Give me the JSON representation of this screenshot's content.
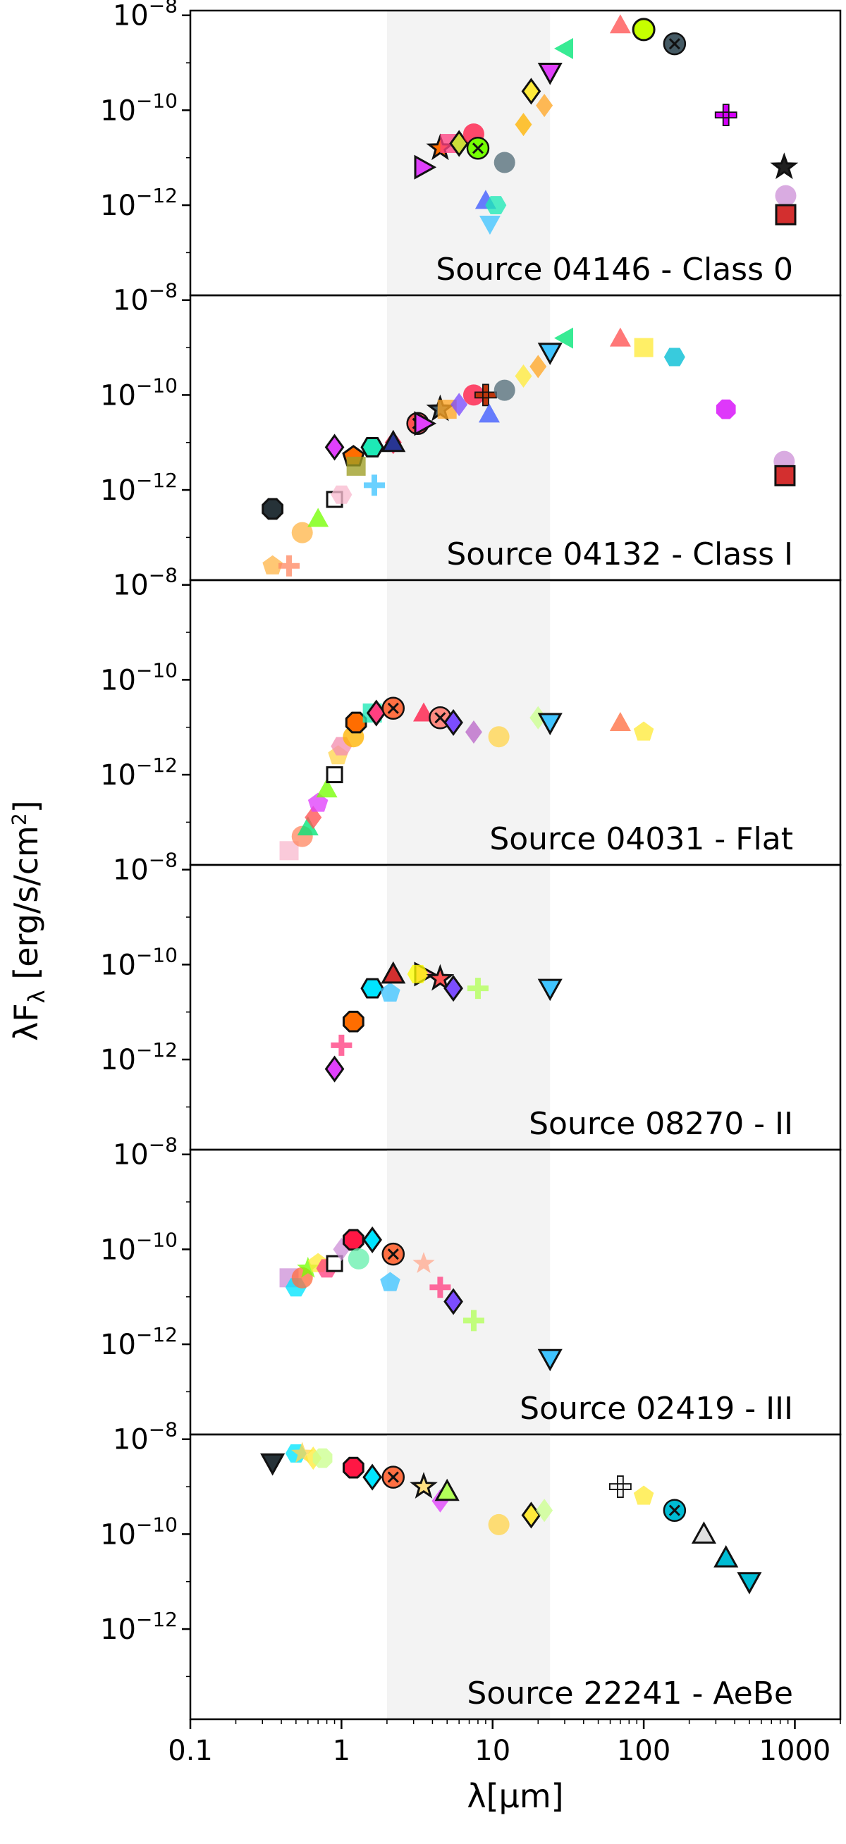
{
  "chart_data": {
    "type": "scatter",
    "xlabel": "λ[μm]",
    "ylabel": "λF_λ [erg/s/cm²]",
    "xscale": "log",
    "yscale": "log",
    "xlim": [
      0.1,
      2000
    ],
    "x_ticks": [
      0.1,
      1,
      10,
      100,
      1000
    ],
    "x_tick_labels": [
      "0.1",
      "1",
      "10",
      "100",
      "1000"
    ],
    "shaded_band_x": [
      2,
      24
    ],
    "panels": [
      {
        "label": "Source 04146 - Class 0",
        "ylim_exp": [
          -13.9,
          -7.9
        ],
        "y_tick_exps": [
          -8,
          -10,
          -12
        ],
        "points": [
          [
            3.5,
            -11.2,
            "#e040fb",
            "tri-right",
            1
          ],
          [
            4.5,
            -10.8,
            "#ff6d00",
            "star",
            1
          ],
          [
            5.2,
            -10.7,
            "#ff4081",
            "square",
            0
          ],
          [
            6.0,
            -10.7,
            "#cddc39",
            "diamond",
            1
          ],
          [
            7.5,
            -10.5,
            "#ff1744",
            "circle",
            0
          ],
          [
            8.0,
            -10.8,
            "#76ff03",
            "x",
            1
          ],
          [
            9.0,
            -11.9,
            "#3d5afe",
            "triangle",
            0
          ],
          [
            9.6,
            -12.4,
            "#40c4ff",
            "tri-down",
            0
          ],
          [
            10.5,
            -12.0,
            "#1de9b6",
            "hexagon",
            0
          ],
          [
            12.0,
            -11.1,
            "#546e7a",
            "circle",
            0
          ],
          [
            16.0,
            -10.3,
            "#ffb300",
            "diamond",
            0
          ],
          [
            18.0,
            -9.6,
            "#ffeb3b",
            "diamond",
            1
          ],
          [
            22.0,
            -9.9,
            "#ffa726",
            "diamond",
            0
          ],
          [
            24.0,
            -9.2,
            "#e040fb",
            "tri-down",
            1
          ],
          [
            30.0,
            -8.7,
            "#00e676",
            "tri-left",
            0
          ],
          [
            70.0,
            -8.2,
            "#ff5252",
            "triangle",
            0
          ],
          [
            100.0,
            -8.3,
            "#c6ff00",
            "circle",
            1
          ],
          [
            160.0,
            -8.6,
            "#455a64",
            "x",
            1
          ],
          [
            350.0,
            -10.1,
            "#d500f9",
            "plus",
            1
          ],
          [
            850.0,
            -11.2,
            "#212121",
            "star",
            1
          ],
          [
            870.0,
            -11.8,
            "#ce93d8",
            "circle",
            0
          ],
          [
            870.0,
            -12.2,
            "#d32f2f",
            "square",
            1
          ]
        ]
      },
      {
        "label": "Source 04132 - Class I",
        "ylim_exp": [
          -13.9,
          -7.9
        ],
        "y_tick_exps": [
          -8,
          -10,
          -12
        ],
        "points": [
          [
            0.35,
            -12.4,
            "#263238",
            "octagon",
            1
          ],
          [
            0.35,
            -13.6,
            "#ffb74d",
            "pentagon",
            0
          ],
          [
            0.45,
            -13.6,
            "#ff8a65",
            "plus",
            0
          ],
          [
            0.55,
            -12.9,
            "#ffb74d",
            "circle",
            0
          ],
          [
            0.7,
            -12.6,
            "#76ff03",
            "triangle",
            0
          ],
          [
            0.9,
            -11.1,
            "#e040fb",
            "diamond",
            1
          ],
          [
            0.9,
            -12.2,
            "#f8bbd0",
            "square-open",
            1
          ],
          [
            1.0,
            -12.1,
            "#f8bbd0",
            "hexagon",
            0
          ],
          [
            1.2,
            -11.3,
            "#ff6d00",
            "pentagon",
            1
          ],
          [
            1.25,
            -11.5,
            "#9e9d24",
            "square",
            0
          ],
          [
            1.6,
            -11.1,
            "#1de9b6",
            "hexagon",
            1
          ],
          [
            1.65,
            -11.9,
            "#40c4ff",
            "plus",
            0
          ],
          [
            2.2,
            -11.0,
            "#ff1744",
            "diamond",
            0
          ],
          [
            2.2,
            -11.0,
            "#283593",
            "triangle",
            1
          ],
          [
            3.2,
            -10.6,
            "#ff5252",
            "x",
            0
          ],
          [
            3.5,
            -10.6,
            "#e040fb",
            "tri-right",
            1
          ],
          [
            4.5,
            -10.3,
            "#455a64",
            "star",
            1
          ],
          [
            5.0,
            -10.3,
            "#ffa726",
            "square",
            0
          ],
          [
            6.0,
            -10.2,
            "#7c4dff",
            "diamond",
            0
          ],
          [
            7.5,
            -10.0,
            "#ff1744",
            "circle",
            0
          ],
          [
            9.0,
            -10.0,
            "#bf360c",
            "plus",
            1
          ],
          [
            9.5,
            -10.4,
            "#3d5afe",
            "triangle",
            0
          ],
          [
            12.0,
            -9.9,
            "#546e7a",
            "circle",
            0
          ],
          [
            16.0,
            -9.6,
            "#ffeb3b",
            "diamond",
            0
          ],
          [
            20.0,
            -9.4,
            "#ffa726",
            "diamond",
            0
          ],
          [
            24.0,
            -9.1,
            "#40c4ff",
            "tri-down",
            1
          ],
          [
            30.0,
            -8.8,
            "#00e676",
            "tri-left",
            0
          ],
          [
            70.0,
            -8.8,
            "#ff5252",
            "triangle",
            0
          ],
          [
            100.0,
            -9.0,
            "#ffeb3b",
            "square",
            0
          ],
          [
            160.0,
            -9.2,
            "#00bcd4",
            "hexagon",
            0
          ],
          [
            350.0,
            -10.3,
            "#d500f9",
            "octagon",
            0
          ],
          [
            850.0,
            -11.4,
            "#ce93d8",
            "circle",
            0
          ],
          [
            860.0,
            -11.7,
            "#d32f2f",
            "square",
            1
          ]
        ]
      },
      {
        "label": "Source 04031 - Flat",
        "ylim_exp": [
          -13.9,
          -7.9
        ],
        "y_tick_exps": [
          -8,
          -10,
          -12
        ],
        "points": [
          [
            0.45,
            -13.6,
            "#f8bbd0",
            "square",
            0
          ],
          [
            0.55,
            -13.3,
            "#ff8a65",
            "circle",
            0
          ],
          [
            0.6,
            -13.1,
            "#00e676",
            "triangle",
            0
          ],
          [
            0.65,
            -12.9,
            "#ff5252",
            "diamond",
            0
          ],
          [
            0.7,
            -12.6,
            "#e040fb",
            "pentagon",
            0
          ],
          [
            0.8,
            -12.3,
            "#76ff03",
            "triangle",
            0
          ],
          [
            0.9,
            -12.0,
            "#fff59d",
            "square-open",
            1
          ],
          [
            0.95,
            -11.6,
            "#ffd54f",
            "pentagon",
            0
          ],
          [
            1.0,
            -11.4,
            "#f48fb1",
            "hexagon",
            0
          ],
          [
            1.2,
            -11.2,
            "#ffb300",
            "circle",
            0
          ],
          [
            1.25,
            -10.9,
            "#ff6d00",
            "octagon",
            1
          ],
          [
            1.6,
            -10.7,
            "#1de9b6",
            "square",
            0
          ],
          [
            1.7,
            -10.7,
            "#ff4081",
            "diamond",
            1
          ],
          [
            2.2,
            -10.6,
            "#ff7043",
            "x",
            1
          ],
          [
            3.5,
            -10.7,
            "#ff1744",
            "triangle",
            0
          ],
          [
            4.5,
            -10.8,
            "#ff8a80",
            "x",
            0
          ],
          [
            5.5,
            -10.9,
            "#7c4dff",
            "diamond",
            1
          ],
          [
            7.5,
            -11.1,
            "#ba68c8",
            "diamond",
            0
          ],
          [
            11.0,
            -11.2,
            "#ffd54f",
            "circle",
            0
          ],
          [
            20.0,
            -10.8,
            "#ccff90",
            "diamond",
            0
          ],
          [
            24.0,
            -10.9,
            "#40c4ff",
            "tri-down",
            1
          ],
          [
            70.0,
            -10.9,
            "#ff7043",
            "triangle",
            0
          ],
          [
            100.0,
            -11.1,
            "#ffeb3b",
            "pentagon",
            0
          ]
        ]
      },
      {
        "label": "Source 08270 - II",
        "ylim_exp": [
          -13.9,
          -7.9
        ],
        "y_tick_exps": [
          -8,
          -10,
          -12
        ],
        "points": [
          [
            0.9,
            -12.2,
            "#e040fb",
            "diamond",
            1
          ],
          [
            1.0,
            -11.7,
            "#ff4081",
            "plus",
            0
          ],
          [
            1.2,
            -11.2,
            "#ff6d00",
            "octagon",
            1
          ],
          [
            1.6,
            -10.5,
            "#00e5ff",
            "hexagon",
            1
          ],
          [
            2.1,
            -10.6,
            "#40c4ff",
            "pentagon",
            0
          ],
          [
            2.2,
            -10.2,
            "#d32f2f",
            "triangle",
            1
          ],
          [
            3.5,
            -10.2,
            "#ff80ab",
            "tri-right",
            1
          ],
          [
            3.2,
            -10.2,
            "#ffff00",
            "hexagon",
            0
          ],
          [
            4.5,
            -10.3,
            "#ff5252",
            "star",
            1
          ],
          [
            5.5,
            -10.5,
            "#7c4dff",
            "diamond",
            1
          ],
          [
            8.0,
            -10.5,
            "#b2ff59",
            "plus",
            0
          ],
          [
            24.0,
            -10.5,
            "#40c4ff",
            "tri-down",
            1
          ]
        ]
      },
      {
        "label": "Source 02419 - III",
        "ylim_exp": [
          -13.9,
          -7.9
        ],
        "y_tick_exps": [
          -8,
          -10,
          -12
        ],
        "points": [
          [
            0.45,
            -10.6,
            "#ce93d8",
            "square",
            0
          ],
          [
            0.5,
            -10.8,
            "#00e5ff",
            "hexagon",
            0
          ],
          [
            0.55,
            -10.6,
            "#ff7043",
            "circle",
            0
          ],
          [
            0.6,
            -10.4,
            "#76ff03",
            "star",
            0
          ],
          [
            0.7,
            -10.3,
            "#ffeb3b",
            "pentagon",
            0
          ],
          [
            0.8,
            -10.4,
            "#ff4081",
            "hexagon",
            0
          ],
          [
            0.9,
            -10.3,
            "#e0e0e0",
            "square-open",
            1
          ],
          [
            1.0,
            -10.0,
            "#ce93d8",
            "diamond",
            0
          ],
          [
            1.2,
            -9.8,
            "#ff1744",
            "octagon",
            1
          ],
          [
            1.3,
            -10.2,
            "#69f0ae",
            "circle",
            0
          ],
          [
            1.6,
            -9.8,
            "#00e5ff",
            "diamond",
            1
          ],
          [
            2.1,
            -10.7,
            "#40c4ff",
            "pentagon",
            0
          ],
          [
            2.2,
            -10.1,
            "#ff7043",
            "x",
            1
          ],
          [
            3.5,
            -10.3,
            "#ffab91",
            "star",
            0
          ],
          [
            4.5,
            -10.8,
            "#ff4081",
            "plus",
            0
          ],
          [
            5.5,
            -11.1,
            "#7c4dff",
            "diamond",
            1
          ],
          [
            7.5,
            -11.5,
            "#b2ff59",
            "plus",
            0
          ],
          [
            24.0,
            -12.3,
            "#40c4ff",
            "tri-down",
            1
          ]
        ]
      },
      {
        "label": "Source 22241 - AeBe",
        "ylim_exp": [
          -13.9,
          -7.9
        ],
        "y_tick_exps": [
          -8,
          -10,
          -12
        ],
        "points": [
          [
            0.35,
            -8.5,
            "#263238",
            "tri-down",
            1
          ],
          [
            0.5,
            -8.3,
            "#00e5ff",
            "hexagon",
            0
          ],
          [
            0.55,
            -8.3,
            "#ffd54f",
            "star",
            0
          ],
          [
            0.65,
            -8.4,
            "#ffeb3b",
            "diamond",
            0
          ],
          [
            0.75,
            -8.4,
            "#ccff90",
            "octagon",
            0
          ],
          [
            1.2,
            -8.6,
            "#ff1744",
            "octagon",
            1
          ],
          [
            1.6,
            -8.8,
            "#00e5ff",
            "diamond",
            1
          ],
          [
            2.2,
            -8.8,
            "#ff7043",
            "x",
            1
          ],
          [
            3.5,
            -9.0,
            "#ffe082",
            "star",
            1
          ],
          [
            4.5,
            -9.3,
            "#e040fb",
            "diamond",
            0
          ],
          [
            5.0,
            -9.1,
            "#b2ff59",
            "triangle",
            1
          ],
          [
            11.0,
            -9.8,
            "#ffd54f",
            "circle",
            0
          ],
          [
            18.0,
            -9.6,
            "#ffeb3b",
            "diamond",
            1
          ],
          [
            22.0,
            -9.5,
            "#ccff90",
            "diamond",
            0
          ],
          [
            70.0,
            -9.0,
            "#f5f5f5",
            "plus",
            1
          ],
          [
            100.0,
            -9.2,
            "#ffeb3b",
            "pentagon",
            0
          ],
          [
            160.0,
            -9.5,
            "#00bcd4",
            "x",
            1
          ],
          [
            250.0,
            -10.0,
            "#e0e0e0",
            "triangle",
            1
          ],
          [
            350.0,
            -10.5,
            "#00bcd4",
            "triangle",
            1
          ],
          [
            500.0,
            -11.0,
            "#00bcd4",
            "tri-down",
            1
          ]
        ]
      }
    ]
  }
}
